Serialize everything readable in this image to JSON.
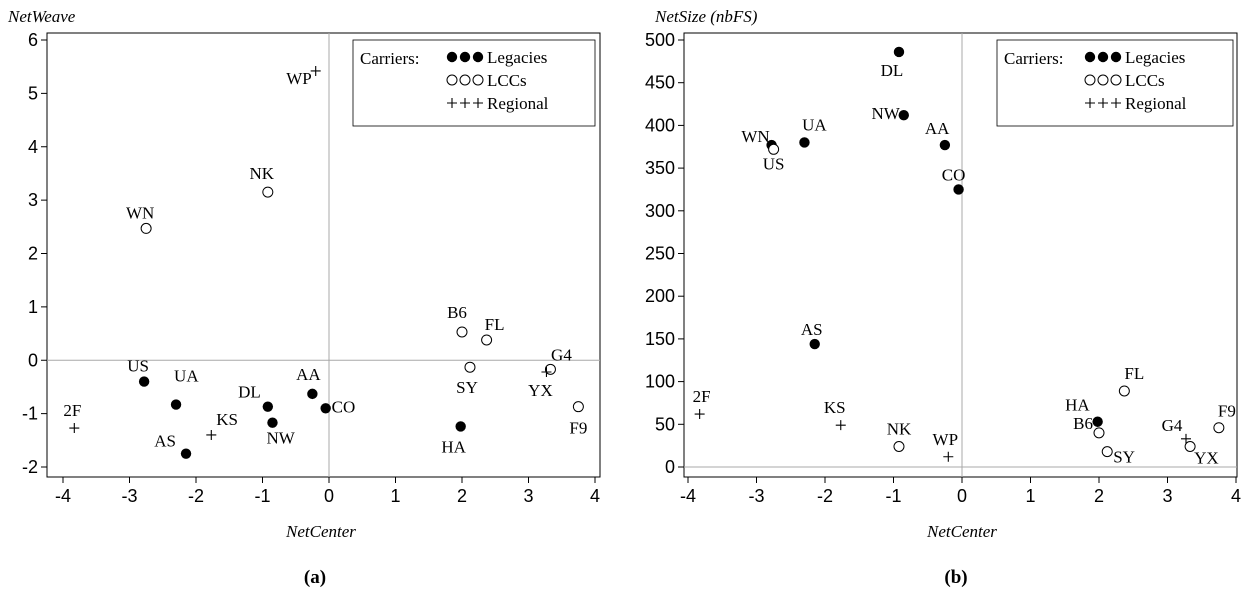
{
  "chart_data": [
    {
      "type": "scatter",
      "panel": "(a)",
      "xlabel": "NetCenter",
      "ylabel": "NetWeave",
      "xlim": [
        -4,
        4
      ],
      "ylim": [
        -2,
        6
      ],
      "xticks": [
        "-4",
        "-3",
        "-2",
        "-1",
        "0",
        "1",
        "2",
        "3",
        "4"
      ],
      "yticks": [
        "-2",
        "-1",
        "0",
        "1",
        "2",
        "3",
        "4",
        "5",
        "6"
      ],
      "reference_lines": {
        "x": 0,
        "y": 0
      },
      "legend": {
        "title": "Carriers:",
        "entries": [
          {
            "label": "Legacies",
            "marker": "filled-circle"
          },
          {
            "label": "LCCs",
            "marker": "open-circle"
          },
          {
            "label": "Regional",
            "marker": "plus"
          }
        ]
      },
      "points": [
        {
          "label": "US",
          "group": "Legacies",
          "x": -2.78,
          "y": -0.4
        },
        {
          "label": "UA",
          "group": "Legacies",
          "x": -2.3,
          "y": -0.83
        },
        {
          "label": "AS",
          "group": "Legacies",
          "x": -2.15,
          "y": -1.75
        },
        {
          "label": "DL",
          "group": "Legacies",
          "x": -0.92,
          "y": -0.87
        },
        {
          "label": "NW",
          "group": "Legacies",
          "x": -0.85,
          "y": -1.17
        },
        {
          "label": "AA",
          "group": "Legacies",
          "x": -0.25,
          "y": -0.63
        },
        {
          "label": "CO",
          "group": "Legacies",
          "x": -0.05,
          "y": -0.9
        },
        {
          "label": "HA",
          "group": "Legacies",
          "x": 1.98,
          "y": -1.24
        },
        {
          "label": "WN",
          "group": "LCCs",
          "x": -2.75,
          "y": 2.47
        },
        {
          "label": "NK",
          "group": "LCCs",
          "x": -0.92,
          "y": 3.15
        },
        {
          "label": "B6",
          "group": "LCCs",
          "x": 2.0,
          "y": 0.53
        },
        {
          "label": "FL",
          "group": "LCCs",
          "x": 2.37,
          "y": 0.38
        },
        {
          "label": "SY",
          "group": "LCCs",
          "x": 2.12,
          "y": -0.13
        },
        {
          "label": "G4",
          "group": "LCCs",
          "x": 3.33,
          "y": -0.17
        },
        {
          "label": "F9",
          "group": "LCCs",
          "x": 3.75,
          "y": -0.87
        },
        {
          "label": "WP",
          "group": "Regional",
          "x": -0.2,
          "y": 5.42
        },
        {
          "label": "2F",
          "group": "Regional",
          "x": -3.83,
          "y": -1.27
        },
        {
          "label": "KS",
          "group": "Regional",
          "x": -1.77,
          "y": -1.4
        },
        {
          "label": "YX",
          "group": "Regional",
          "x": 3.27,
          "y": -0.22
        }
      ]
    },
    {
      "type": "scatter",
      "panel": "(b)",
      "xlabel": "NetCenter",
      "ylabel": "NetSize (nbFS)",
      "xlim": [
        -4,
        4
      ],
      "ylim": [
        0,
        500
      ],
      "xticks": [
        "-4",
        "-3",
        "-2",
        "-1",
        "0",
        "1",
        "2",
        "3",
        "4"
      ],
      "yticks": [
        "0",
        "50",
        "100",
        "150",
        "200",
        "250",
        "300",
        "350",
        "400",
        "450",
        "500"
      ],
      "reference_lines": {
        "x": 0,
        "y": 0
      },
      "legend": {
        "title": "Carriers:",
        "entries": [
          {
            "label": "Legacies",
            "marker": "filled-circle"
          },
          {
            "label": "LCCs",
            "marker": "open-circle"
          },
          {
            "label": "Regional",
            "marker": "plus"
          }
        ]
      },
      "points": [
        {
          "label": "DL",
          "group": "Legacies",
          "x": -0.92,
          "y": 486
        },
        {
          "label": "NW",
          "group": "Legacies",
          "x": -0.85,
          "y": 412
        },
        {
          "label": "UA",
          "group": "Legacies",
          "x": -2.3,
          "y": 380
        },
        {
          "label": "AA",
          "group": "Legacies",
          "x": -0.25,
          "y": 377
        },
        {
          "label": "CO",
          "group": "Legacies",
          "x": -0.05,
          "y": 325
        },
        {
          "label": "AS",
          "group": "Legacies",
          "x": -2.15,
          "y": 144
        },
        {
          "label": "HA",
          "group": "Legacies",
          "x": 1.98,
          "y": 53
        },
        {
          "label": "WN",
          "group": "Legacies",
          "x": -2.78,
          "y": 377
        },
        {
          "label": "US",
          "group": "LCCs",
          "x": -2.75,
          "y": 372
        },
        {
          "label": "NK",
          "group": "LCCs",
          "x": -0.92,
          "y": 24
        },
        {
          "label": "FL",
          "group": "LCCs",
          "x": 2.37,
          "y": 89
        },
        {
          "label": "B6",
          "group": "LCCs",
          "x": 2.0,
          "y": 40
        },
        {
          "label": "SY",
          "group": "LCCs",
          "x": 2.12,
          "y": 18
        },
        {
          "label": "YX",
          "group": "LCCs",
          "x": 3.33,
          "y": 24
        },
        {
          "label": "F9",
          "group": "LCCs",
          "x": 3.75,
          "y": 46
        },
        {
          "label": "2F",
          "group": "Regional",
          "x": -3.83,
          "y": 62
        },
        {
          "label": "KS",
          "group": "Regional",
          "x": -1.77,
          "y": 49
        },
        {
          "label": "WP",
          "group": "Regional",
          "x": -0.2,
          "y": 12
        },
        {
          "label": "G4",
          "group": "Regional",
          "x": 3.27,
          "y": 33
        }
      ]
    }
  ]
}
